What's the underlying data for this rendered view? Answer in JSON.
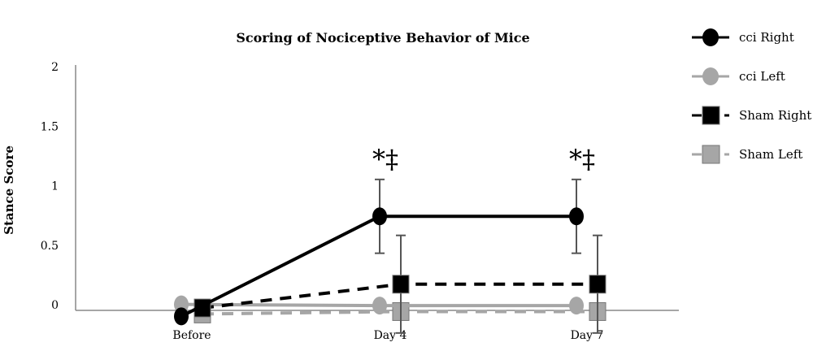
{
  "chart_data": {
    "type": "line",
    "title": "Scoring of Nociceptive Behavior of Mice",
    "ylabel": "Stance Score",
    "xlabel": "",
    "categories": [
      "Before",
      "Day 4",
      "Day 7"
    ],
    "y_ticks": [
      "0",
      "0.5",
      "1",
      "1.5",
      "2"
    ],
    "ylim": [
      0,
      2
    ],
    "grid": false,
    "legend_position": "right",
    "series": [
      {
        "name": "cci Right",
        "values": [
          -0.05,
          0.79,
          0.79
        ],
        "error": [
          null,
          0.31,
          0.31
        ],
        "marker": "circle",
        "line_style": "solid",
        "color": "#000000"
      },
      {
        "name": "cci Left",
        "values": [
          0.05,
          0.04,
          0.04
        ],
        "error": [
          null,
          null,
          null
        ],
        "marker": "circle",
        "line_style": "solid",
        "color": "#a6a6a6"
      },
      {
        "name": "Sham Right",
        "values": [
          0.02,
          0.22,
          0.22
        ],
        "error": [
          null,
          0.41,
          0.41
        ],
        "marker": "square",
        "line_style": "dashed",
        "color": "#000000"
      },
      {
        "name": "Sham Left",
        "values": [
          -0.03,
          -0.01,
          -0.01
        ],
        "error": [
          null,
          null,
          null
        ],
        "marker": "square",
        "line_style": "dashed",
        "color": "#a6a6a6"
      }
    ],
    "annotations": [
      {
        "category": "Day 4",
        "text": "*‡"
      },
      {
        "category": "Day 7",
        "text": "*‡"
      }
    ]
  }
}
